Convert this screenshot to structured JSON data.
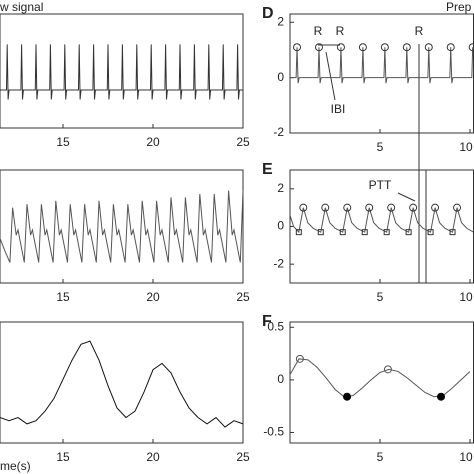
{
  "chart_data": [
    {
      "type": "line",
      "title": "w signal",
      "xlim": [
        11.5,
        25
      ],
      "ylim": [
        -2,
        4
      ],
      "xticks": [
        15,
        20,
        25
      ],
      "series": [
        {
          "color": "#333333",
          "x": [
            11.5,
            11.86,
            11.9,
            11.95,
            12.0,
            12.66,
            12.7,
            12.75,
            12.8,
            13.46,
            13.5,
            13.55,
            13.6,
            14.26,
            14.3,
            14.35,
            14.4,
            15.06,
            15.1,
            15.15,
            15.2,
            15.86,
            15.9,
            15.95,
            16.0,
            16.66,
            16.7,
            16.75,
            16.8,
            17.46,
            17.5,
            17.55,
            17.6,
            18.26,
            18.3,
            18.35,
            18.4,
            19.06,
            19.1,
            19.15,
            19.2,
            19.86,
            19.9,
            19.95,
            20.0,
            20.66,
            20.7,
            20.75,
            20.8,
            21.46,
            21.5,
            21.55,
            21.6,
            22.26,
            22.3,
            22.35,
            22.4,
            23.06,
            23.1,
            23.15,
            23.2,
            23.86,
            23.9,
            23.95,
            24.0,
            24.66,
            24.7,
            24.75,
            24.8,
            25
          ],
          "values": [
            0,
            0,
            2.4,
            -0.5,
            0,
            0,
            2.4,
            -0.5,
            0,
            0,
            2.4,
            -0.5,
            0,
            0,
            2.4,
            -0.5,
            0,
            0,
            2.4,
            -0.5,
            0,
            0,
            2.4,
            -0.5,
            0,
            0,
            2.4,
            -0.5,
            0,
            0,
            2.4,
            -0.5,
            0,
            0,
            2.4,
            -0.5,
            0,
            0,
            2.4,
            -0.5,
            0,
            0,
            2.4,
            -0.5,
            0,
            0,
            2.4,
            -0.5,
            0,
            0,
            2.4,
            -0.5,
            0,
            0,
            2.4,
            -0.5,
            0,
            0,
            2.4,
            -0.5,
            0,
            0,
            2.4,
            -0.5,
            0,
            0,
            2.4,
            -0.5,
            0,
            0
          ]
        }
      ]
    },
    {
      "type": "line",
      "xlim": [
        11.5,
        25
      ],
      "ylim": [
        -1.5,
        1.8
      ],
      "xticks": [
        15,
        20,
        25
      ],
      "series": [
        {
          "color": "#555555",
          "x": [
            11.5,
            11.8,
            12.05,
            12.2,
            12.4,
            12.5,
            12.85,
            13.0,
            13.2,
            13.3,
            13.65,
            13.8,
            14.0,
            14.1,
            14.45,
            14.6,
            14.8,
            14.9,
            15.25,
            15.4,
            15.6,
            15.7,
            16.05,
            16.2,
            16.4,
            16.5,
            16.85,
            17.0,
            17.2,
            17.3,
            17.65,
            17.8,
            18.0,
            18.1,
            18.45,
            18.6,
            18.8,
            18.9,
            19.25,
            19.4,
            19.6,
            19.7,
            20.05,
            20.2,
            20.4,
            20.5,
            20.85,
            21.0,
            21.2,
            21.3,
            21.65,
            21.8,
            22.0,
            22.1,
            22.45,
            22.6,
            22.8,
            22.9,
            23.25,
            23.4,
            23.6,
            23.7,
            24.05,
            24.2,
            24.4,
            24.5,
            24.85,
            25.0
          ],
          "values": [
            -0.2,
            -0.6,
            -0.9,
            0.7,
            -0.1,
            0.05,
            -0.9,
            0.8,
            -0.1,
            0.05,
            -0.9,
            0.8,
            -0.1,
            0.05,
            -0.9,
            0.9,
            -0.1,
            0.05,
            -0.9,
            0.8,
            -0.1,
            0.05,
            -0.9,
            0.8,
            -0.1,
            0.05,
            -0.9,
            0.9,
            -0.1,
            0.05,
            -0.9,
            0.8,
            -0.1,
            0.05,
            -0.9,
            0.8,
            -0.1,
            0.05,
            -0.9,
            0.9,
            -0.1,
            0.05,
            -0.9,
            0.9,
            -0.1,
            0.05,
            -0.9,
            1.0,
            -0.1,
            0.05,
            -0.9,
            1.0,
            -0.1,
            0.05,
            -0.9,
            1.1,
            -0.1,
            0.05,
            -0.9,
            1.1,
            -0.1,
            0.05,
            -0.9,
            1.2,
            -0.1,
            0.05,
            -0.9,
            1.2
          ]
        }
      ]
    },
    {
      "type": "line",
      "xlabel": "me(s)",
      "xlim": [
        11.5,
        25
      ],
      "ylim": [
        -0.6,
        1.3
      ],
      "xticks": [
        15,
        20,
        25
      ],
      "series": [
        {
          "color": "#111111",
          "x": [
            11.5,
            12,
            12.5,
            13,
            13.5,
            14,
            14.5,
            15,
            15.5,
            16,
            16.5,
            17,
            17.5,
            18,
            18.5,
            19,
            19.5,
            20,
            20.5,
            21,
            21.5,
            22,
            22.5,
            23,
            23.5,
            24,
            24.5,
            25
          ],
          "values": [
            -0.2,
            -0.25,
            -0.2,
            -0.3,
            -0.25,
            -0.1,
            0.1,
            0.4,
            0.7,
            0.95,
            1.0,
            0.7,
            0.3,
            -0.05,
            -0.2,
            -0.1,
            0.2,
            0.55,
            0.65,
            0.5,
            0.2,
            -0.05,
            -0.2,
            -0.3,
            -0.2,
            -0.35,
            -0.25,
            -0.3
          ]
        }
      ]
    },
    {
      "type": "line",
      "title": "Prep",
      "panel": "D",
      "annotations": [
        "R",
        "R",
        "R",
        "IBI"
      ],
      "xlim": [
        0,
        10.2
      ],
      "ylim": [
        -2,
        2.3
      ],
      "xticks": [
        5,
        10
      ],
      "yticks": [
        -2,
        0,
        2
      ],
      "series": [
        {
          "color": "#555555",
          "x": [
            0,
            0.34,
            0.39,
            0.45,
            0.51,
            1.56,
            1.61,
            1.67,
            1.73,
            2.78,
            2.83,
            2.89,
            2.95,
            4.0,
            4.05,
            4.11,
            4.17,
            5.22,
            5.27,
            5.33,
            5.39,
            6.44,
            6.49,
            6.55,
            6.61,
            7.66,
            7.71,
            7.77,
            7.83,
            8.88,
            8.93,
            8.99,
            9.05,
            10.1,
            10.15
          ],
          "values": [
            0,
            0,
            1.1,
            -0.2,
            0,
            0,
            1.1,
            -0.2,
            0,
            0,
            1.1,
            -0.2,
            0,
            0,
            1.1,
            -0.2,
            0,
            0,
            1.1,
            -0.2,
            0,
            0,
            1.1,
            -0.2,
            0,
            0,
            1.1,
            -0.2,
            0,
            0,
            1.1,
            -0.2,
            0,
            0,
            1.1
          ]
        },
        {
          "color": "#333333",
          "marker": "open-circle",
          "x": [
            0.39,
            1.61,
            2.83,
            4.05,
            5.27,
            6.49,
            7.71,
            8.93,
            10.15
          ],
          "values": [
            1.1,
            1.1,
            1.1,
            1.1,
            1.1,
            1.1,
            1.1,
            1.1,
            1.1
          ]
        }
      ]
    },
    {
      "type": "line",
      "panel": "E",
      "annotations": [
        "PTT"
      ],
      "xlim": [
        0,
        10.2
      ],
      "ylim": [
        -3,
        3
      ],
      "xticks": [
        5,
        10
      ],
      "yticks": [
        -2,
        0,
        2
      ],
      "series": [
        {
          "color": "#555555",
          "x": [
            0,
            0.2,
            0.49,
            0.74,
            0.99,
            1.29,
            1.71,
            1.96,
            2.21,
            2.51,
            2.93,
            3.18,
            3.43,
            3.73,
            4.15,
            4.4,
            4.65,
            4.95,
            5.37,
            5.62,
            5.87,
            6.17,
            6.59,
            6.84,
            7.09,
            7.39,
            7.81,
            8.06,
            8.31,
            8.61,
            9.03,
            9.28,
            9.53,
            9.83,
            10.2
          ],
          "values": [
            0.6,
            0.0,
            -0.3,
            1.0,
            0.2,
            -0.1,
            -0.3,
            1.0,
            0.2,
            -0.1,
            -0.3,
            1.0,
            0.2,
            -0.1,
            -0.3,
            1.0,
            0.2,
            -0.1,
            -0.3,
            1.0,
            0.2,
            -0.1,
            -0.3,
            1.0,
            0.2,
            -0.1,
            -0.3,
            1.0,
            0.2,
            -0.1,
            -0.3,
            1.0,
            0.2,
            -0.1,
            -0.3
          ]
        },
        {
          "color": "#333333",
          "marker": "open-circle",
          "x": [
            0.74,
            1.96,
            3.18,
            4.4,
            5.62,
            6.84,
            8.06,
            9.28
          ],
          "values": [
            1.0,
            1.0,
            1.0,
            1.0,
            1.0,
            1.0,
            1.0,
            1.0
          ]
        },
        {
          "color": "#333333",
          "marker": "square",
          "x": [
            0.49,
            1.71,
            2.93,
            4.15,
            5.37,
            6.59,
            7.81,
            9.03
          ],
          "values": [
            -0.3,
            -0.3,
            -0.3,
            -0.3,
            -0.3,
            -0.3,
            -0.3,
            -0.3
          ]
        }
      ]
    },
    {
      "type": "line",
      "panel": "F",
      "xlim": [
        0,
        10.2
      ],
      "ylim": [
        -0.6,
        0.55
      ],
      "xticks": [
        5,
        10
      ],
      "yticks": [
        -0.5,
        0,
        0.5
      ],
      "series": [
        {
          "color": "#555555",
          "x": [
            0,
            0.5,
            1,
            1.5,
            2,
            2.5,
            3,
            3.5,
            4,
            4.5,
            5,
            5.5,
            6,
            6.5,
            7,
            7.5,
            8,
            8.5,
            9,
            9.5,
            10
          ],
          "values": [
            0.05,
            0.2,
            0.19,
            0.12,
            0.02,
            -0.09,
            -0.16,
            -0.15,
            -0.08,
            0.0,
            0.07,
            0.1,
            0.08,
            0.02,
            -0.05,
            -0.12,
            -0.16,
            -0.15,
            -0.08,
            0.0,
            0.08
          ]
        },
        {
          "color": "#555555",
          "marker": "open-circle",
          "x": [
            0.55,
            5.44
          ],
          "values": [
            0.2,
            0.1
          ]
        },
        {
          "color": "#000000",
          "marker": "filled-circle",
          "x": [
            3.17,
            8.39
          ],
          "values": [
            -0.16,
            -0.16
          ]
        }
      ]
    }
  ]
}
